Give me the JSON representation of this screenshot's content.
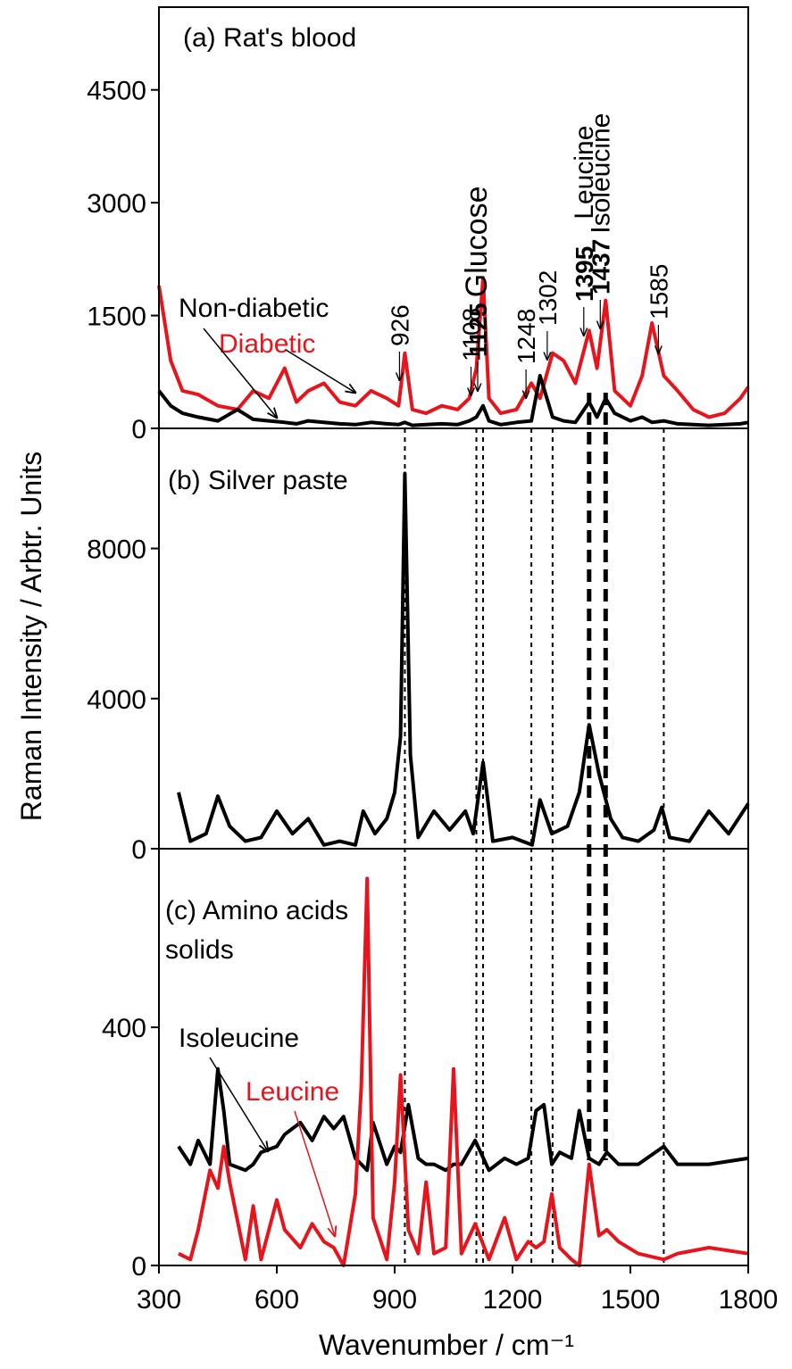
{
  "chart_data": {
    "type": "line",
    "xlabel": "Wavenumber / cm⁻¹",
    "ylabel": "Raman Intensity / Arbtr. Units",
    "xlim": [
      300,
      1800
    ],
    "xticks": [
      300,
      600,
      900,
      1200,
      1500,
      1800
    ],
    "peaks": [
      {
        "x": 926
      },
      {
        "x": 1108
      },
      {
        "x": 1125,
        "name": "Glucose"
      },
      {
        "x": 1248
      },
      {
        "x": 1302
      },
      {
        "x": 1395,
        "name": "Leucine"
      },
      {
        "x": 1437,
        "name": "Isoleucine"
      },
      {
        "x": 1585
      }
    ],
    "panels": [
      {
        "title": "(a) Rat's blood",
        "ylim": [
          0,
          5600
        ],
        "yticks": [
          0,
          1500,
          3000,
          4500
        ],
        "x": [
          300,
          330,
          360,
          400,
          450,
          500,
          540,
          580,
          620,
          650,
          680,
          720,
          760,
          800,
          840,
          880,
          910,
          926,
          945,
          980,
          1020,
          1060,
          1090,
          1108,
          1125,
          1140,
          1170,
          1210,
          1248,
          1270,
          1302,
          1330,
          1360,
          1395,
          1415,
          1437,
          1460,
          1500,
          1530,
          1555,
          1585,
          1620,
          1660,
          1700,
          1740,
          1780,
          1800
        ],
        "series": [
          {
            "name": "Diabetic",
            "color": "#e8141c",
            "values": [
              1900,
              900,
              500,
              450,
              300,
              250,
              500,
              400,
              800,
              350,
              500,
              600,
              350,
              300,
              500,
              400,
              300,
              1000,
              250,
              200,
              300,
              250,
              400,
              800,
              2000,
              400,
              200,
              250,
              600,
              400,
              1000,
              900,
              600,
              1300,
              800,
              1700,
              500,
              300,
              700,
              1400,
              700,
              500,
              250,
              150,
              200,
              400,
              550
            ]
          },
          {
            "name": "Non-diabetic",
            "color": "#000000",
            "values": [
              500,
              300,
              200,
              150,
              100,
              250,
              120,
              100,
              80,
              60,
              100,
              80,
              60,
              50,
              80,
              60,
              50,
              80,
              40,
              50,
              60,
              50,
              100,
              150,
              300,
              100,
              50,
              80,
              100,
              700,
              150,
              100,
              80,
              350,
              150,
              400,
              200,
              100,
              150,
              80,
              100,
              60,
              50,
              40,
              50,
              60,
              80
            ]
          }
        ]
      },
      {
        "title": "(b) Silver paste",
        "ylim": [
          0,
          11200
        ],
        "yticks": [
          0,
          4000,
          8000
        ],
        "x": [
          350,
          380,
          420,
          450,
          480,
          520,
          560,
          600,
          640,
          680,
          720,
          760,
          800,
          820,
          850,
          880,
          900,
          915,
          926,
          940,
          960,
          1000,
          1040,
          1080,
          1100,
          1125,
          1150,
          1200,
          1250,
          1270,
          1300,
          1340,
          1370,
          1395,
          1420,
          1450,
          1480,
          1520,
          1560,
          1580,
          1600,
          1650,
          1700,
          1750,
          1800
        ],
        "series": [
          {
            "color": "#000000",
            "values": [
              1500,
              200,
              400,
              1400,
              600,
              200,
              300,
              1000,
              400,
              800,
              100,
              200,
              100,
              1000,
              400,
              800,
              1500,
              3000,
              10000,
              2500,
              300,
              1000,
              500,
              1000,
              400,
              2300,
              200,
              300,
              100,
              1300,
              400,
              600,
              1500,
              3300,
              2000,
              800,
              300,
              200,
              500,
              1100,
              300,
              200,
              1000,
              400,
              1200
            ]
          }
        ]
      },
      {
        "title_lines": [
          "(c) Amino acids",
          "solids"
        ],
        "ylim": [
          0,
          700
        ],
        "yticks": [
          0,
          400
        ],
        "x": [
          350,
          380,
          400,
          430,
          450,
          465,
          480,
          520,
          540,
          560,
          600,
          620,
          660,
          690,
          720,
          745,
          770,
          800,
          815,
          830,
          845,
          880,
          900,
          915,
          935,
          960,
          980,
          1000,
          1030,
          1050,
          1070,
          1105,
          1140,
          1180,
          1210,
          1240,
          1260,
          1280,
          1300,
          1320,
          1350,
          1370,
          1395,
          1420,
          1440,
          1470,
          1520,
          1585,
          1620,
          1700,
          1800
        ],
        "series": [
          {
            "name": "Isoleucine",
            "color": "#000000",
            "values": [
              200,
              170,
              210,
              170,
              330,
              260,
              170,
              160,
              170,
              190,
              200,
              220,
              240,
              210,
              250,
              230,
              250,
              180,
              170,
              160,
              240,
              170,
              200,
              190,
              270,
              180,
              170,
              170,
              160,
              170,
              170,
              210,
              160,
              180,
              170,
              180,
              260,
              270,
              170,
              190,
              180,
              260,
              180,
              170,
              190,
              170,
              170,
              200,
              170,
              170,
              180
            ]
          },
          {
            "name": "Leucine",
            "color": "#e8141c",
            "values": [
              20,
              10,
              60,
              160,
              130,
              200,
              140,
              10,
              100,
              10,
              110,
              60,
              30,
              70,
              40,
              30,
              0,
              120,
              300,
              650,
              80,
              10,
              140,
              320,
              60,
              20,
              140,
              20,
              30,
              330,
              20,
              70,
              10,
              80,
              10,
              40,
              30,
              40,
              120,
              30,
              10,
              0,
              170,
              50,
              60,
              40,
              20,
              10,
              20,
              30,
              20
            ]
          }
        ]
      }
    ]
  }
}
